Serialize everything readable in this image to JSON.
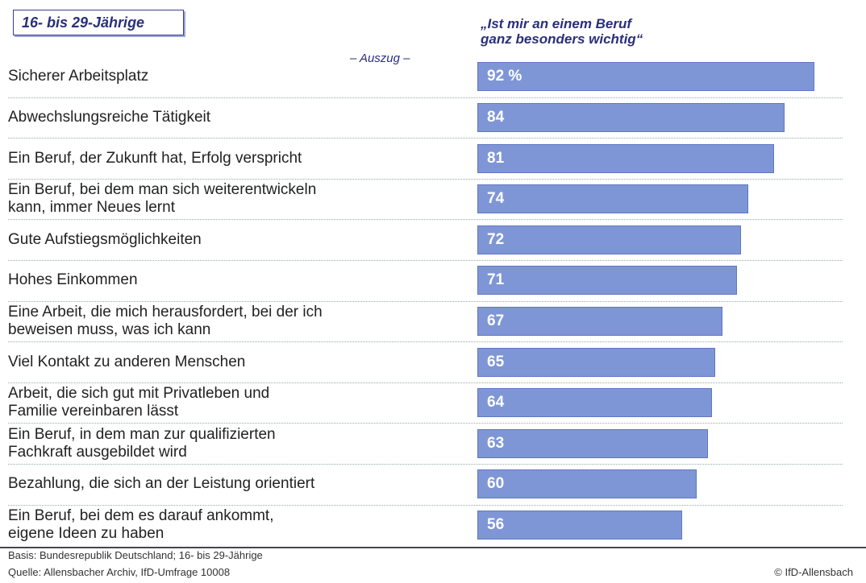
{
  "chart_data": {
    "type": "bar",
    "orientation": "horizontal",
    "title": "16- bis 29-Jährige",
    "subtitle": "„Ist mir an einem Beruf\nganz besonders wichtig“",
    "annotation": "– Auszug –",
    "categories": [
      "Sicherer Arbeitsplatz",
      "Abwechslungsreiche Tätigkeit",
      "Ein Beruf, der Zukunft hat, Erfolg verspricht",
      "Ein Beruf, bei dem man sich weiterentwickeln\nkann, immer Neues lernt",
      "Gute Aufstiegsmöglichkeiten",
      "Hohes Einkommen",
      "Eine Arbeit, die mich herausfordert, bei der ich\nbeweisen muss, was ich kann",
      "Viel Kontakt zu anderen Menschen",
      "Arbeit, die sich gut mit Privatleben und\nFamilie vereinbaren lässt",
      "Ein Beruf, in dem man zur qualifizierten\nFachkraft ausgebildet wird",
      "Bezahlung, die sich an der Leistung orientiert",
      "Ein Beruf, bei dem es darauf ankommt,\neigene Ideen zu haben"
    ],
    "values": [
      92,
      84,
      81,
      74,
      72,
      71,
      67,
      65,
      64,
      63,
      60,
      56
    ],
    "value_labels": [
      "92 %",
      "84",
      "81",
      "74",
      "72",
      "71",
      "67",
      "65",
      "64",
      "63",
      "60",
      "56"
    ],
    "color": "#7f96d6",
    "footnotes": [
      "Basis: Bundesrepublik Deutschland; 16- bis 29-Jährige",
      "Quelle: Allensbacher Archiv, IfD-Umfrage 10008"
    ],
    "copyright": "© IfD-Allensbach"
  }
}
